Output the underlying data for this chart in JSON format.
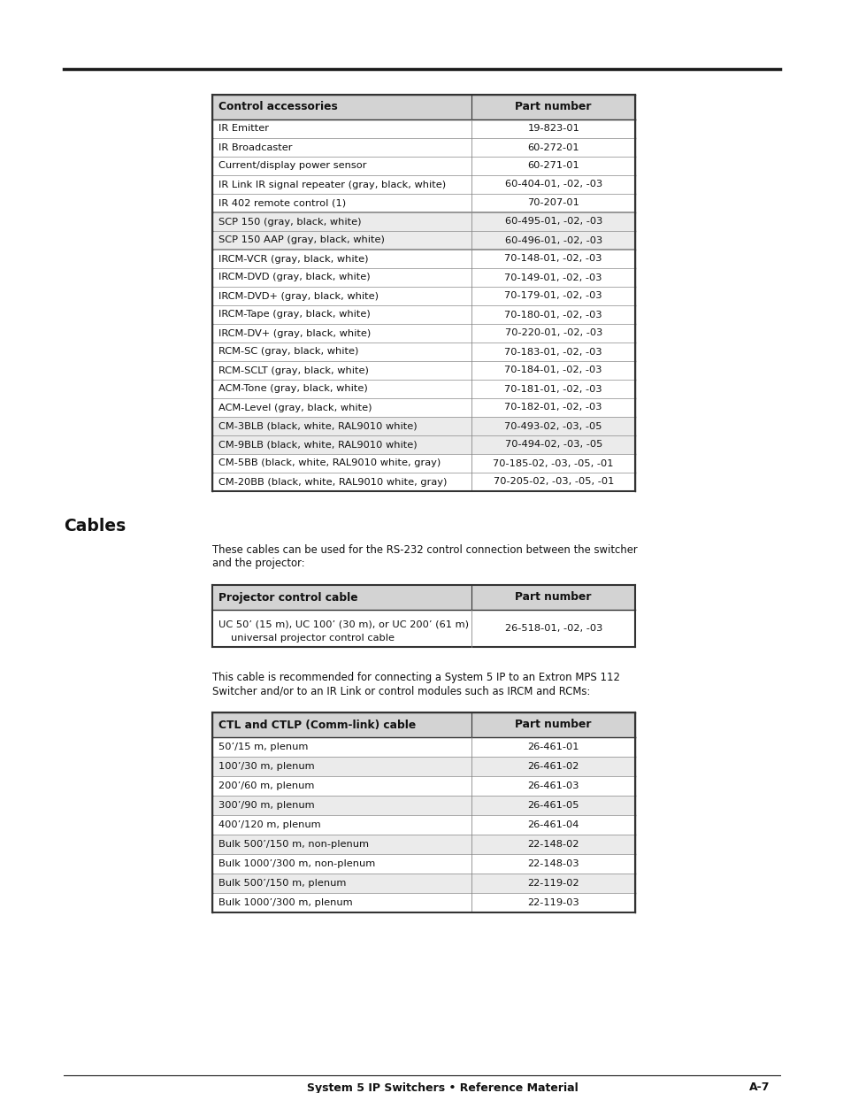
{
  "page_bg": "#ffffff",
  "header_line_color": "#1a1a1a",
  "table1_header": [
    "Control accessories",
    "Part number"
  ],
  "table1_rows": [
    [
      "IR Emitter",
      "19-823-01"
    ],
    [
      "IR Broadcaster",
      "60-272-01"
    ],
    [
      "Current/display power sensor",
      "60-271-01"
    ],
    [
      "IR Link IR signal repeater (gray, black, white)",
      "60-404-01, -02, -03"
    ],
    [
      "IR 402 remote control (1)",
      "70-207-01"
    ],
    [
      "SCP 150 (gray, black, white)",
      "60-495-01, -02, -03"
    ],
    [
      "SCP 150 AAP (gray, black, white)",
      "60-496-01, -02, -03"
    ],
    [
      "IRCM-VCR (gray, black, white)",
      "70-148-01, -02, -03"
    ],
    [
      "IRCM-DVD (gray, black, white)",
      "70-149-01, -02, -03"
    ],
    [
      "IRCM-DVD+ (gray, black, white)",
      "70-179-01, -02, -03"
    ],
    [
      "IRCM-Tape (gray, black, white)",
      "70-180-01, -02, -03"
    ],
    [
      "IRCM-DV+ (gray, black, white)",
      "70-220-01, -02, -03"
    ],
    [
      "RCM-SC (gray, black, white)",
      "70-183-01, -02, -03"
    ],
    [
      "RCM-SCLT (gray, black, white)",
      "70-184-01, -02, -03"
    ],
    [
      "ACM-Tone (gray, black, white)",
      "70-181-01, -02, -03"
    ],
    [
      "ACM-Level (gray, black, white)",
      "70-182-01, -02, -03"
    ],
    [
      "CM-3BLB (black, white, RAL9010 white)",
      "70-493-02, -03, -05"
    ],
    [
      "CM-9BLB (black, white, RAL9010 white)",
      "70-494-02, -03, -05"
    ],
    [
      "CM-5BB (black, white, RAL9010 white, gray)",
      "70-185-02, -03, -05, -01"
    ],
    [
      "CM-20BB (black, white, RAL9010 white, gray)",
      "70-205-02, -03, -05, -01"
    ]
  ],
  "table1_shaded": [
    5,
    6,
    16,
    17
  ],
  "table1_thick_after": [
    4,
    6
  ],
  "cables_heading": "Cables",
  "cables_para1_lines": [
    "These cables can be used for the RS-232 control connection between the switcher",
    "and the projector:"
  ],
  "table2_header": [
    "Projector control cable",
    "Part number"
  ],
  "table2_rows": [
    [
      "UC 50’ (15 m), UC 100’ (30 m), or UC 200’ (61 m)",
      ""
    ],
    [
      "   universal projector control cable",
      "26-518-01, -02, -03"
    ]
  ],
  "table2_shaded": [],
  "table2_merge_rows": true,
  "cables_para2_lines": [
    "This cable is recommended for connecting a System 5 IP to an Extron MPS 112",
    "Switcher and/or to an IR Link or control modules such as IRCM and RCMs:"
  ],
  "table3_header": [
    "CTL and CTLP (Comm-link) cable",
    "Part number"
  ],
  "table3_rows": [
    [
      "50’/15 m, plenum",
      "26-461-01"
    ],
    [
      "100’/30 m, plenum",
      "26-461-02"
    ],
    [
      "200’/60 m, plenum",
      "26-461-03"
    ],
    [
      "300’/90 m, plenum",
      "26-461-05"
    ],
    [
      "400’/120 m, plenum",
      "26-461-04"
    ],
    [
      "Bulk 500’/150 m, non-plenum",
      "22-148-02"
    ],
    [
      "Bulk 1000’/300 m, non-plenum",
      "22-148-03"
    ],
    [
      "Bulk 500’/150 m, plenum",
      "22-119-02"
    ],
    [
      "Bulk 1000’/300 m, plenum",
      "22-119-03"
    ]
  ],
  "table3_shaded": [
    1,
    3,
    5,
    7
  ],
  "footer_left": "System 5 IP Switchers • Reference Material",
  "footer_right": "A-7",
  "header_bg": "#d3d3d3",
  "shaded_bg": "#ebebeb",
  "white_bg": "#ffffff",
  "border_dark": "#333333",
  "border_light": "#888888",
  "text_color": "#111111"
}
